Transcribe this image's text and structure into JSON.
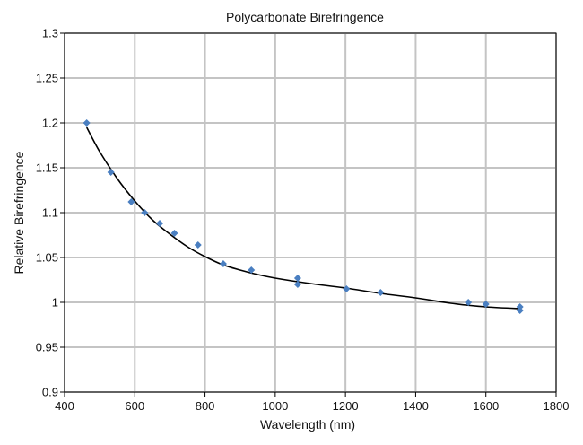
{
  "chart_data": {
    "type": "scatter",
    "title": "Polycarbonate Birefringence",
    "xlabel": "Wavelength (nm)",
    "ylabel": "Relative Birefringence",
    "xlim": [
      400,
      1800
    ],
    "ylim": [
      0.9,
      1.3
    ],
    "xticks": [
      400,
      600,
      800,
      1000,
      1200,
      1400,
      1600,
      1800
    ],
    "xtick_labels": [
      "400",
      "600",
      "800",
      "1000",
      "1200",
      "1400",
      "1600",
      "1800"
    ],
    "yticks": [
      0.9,
      0.95,
      1.0,
      1.05,
      1.1,
      1.15,
      1.2,
      1.25,
      1.3
    ],
    "ytick_labels": [
      "0.9",
      "0.95",
      "1",
      "1.05",
      "1.1",
      "1.15",
      "1.2",
      "1.25",
      "1.3"
    ],
    "grid": true,
    "legend": "none",
    "series": [
      {
        "type": "scatter",
        "marker": "diamond",
        "color": "#4a7fc1",
        "x": [
          463,
          532,
          590,
          628,
          671,
          713,
          780,
          852,
          932,
          1064,
          1064,
          1203,
          1300,
          1550,
          1600,
          1697,
          1697
        ],
        "y": [
          1.2,
          1.145,
          1.112,
          1.1,
          1.088,
          1.077,
          1.064,
          1.043,
          1.036,
          1.027,
          1.02,
          1.015,
          1.011,
          1.0,
          0.998,
          0.995,
          0.991
        ]
      },
      {
        "type": "line",
        "color": "#000000",
        "x": [
          463,
          500,
          550,
          600,
          650,
          700,
          750,
          800,
          850,
          900,
          950,
          1000,
          1100,
          1200,
          1300,
          1400,
          1500,
          1600,
          1700
        ],
        "y": [
          1.195,
          1.168,
          1.138,
          1.113,
          1.092,
          1.076,
          1.062,
          1.051,
          1.042,
          1.036,
          1.031,
          1.027,
          1.021,
          1.016,
          1.01,
          1.005,
          0.999,
          0.995,
          0.993
        ]
      }
    ]
  }
}
